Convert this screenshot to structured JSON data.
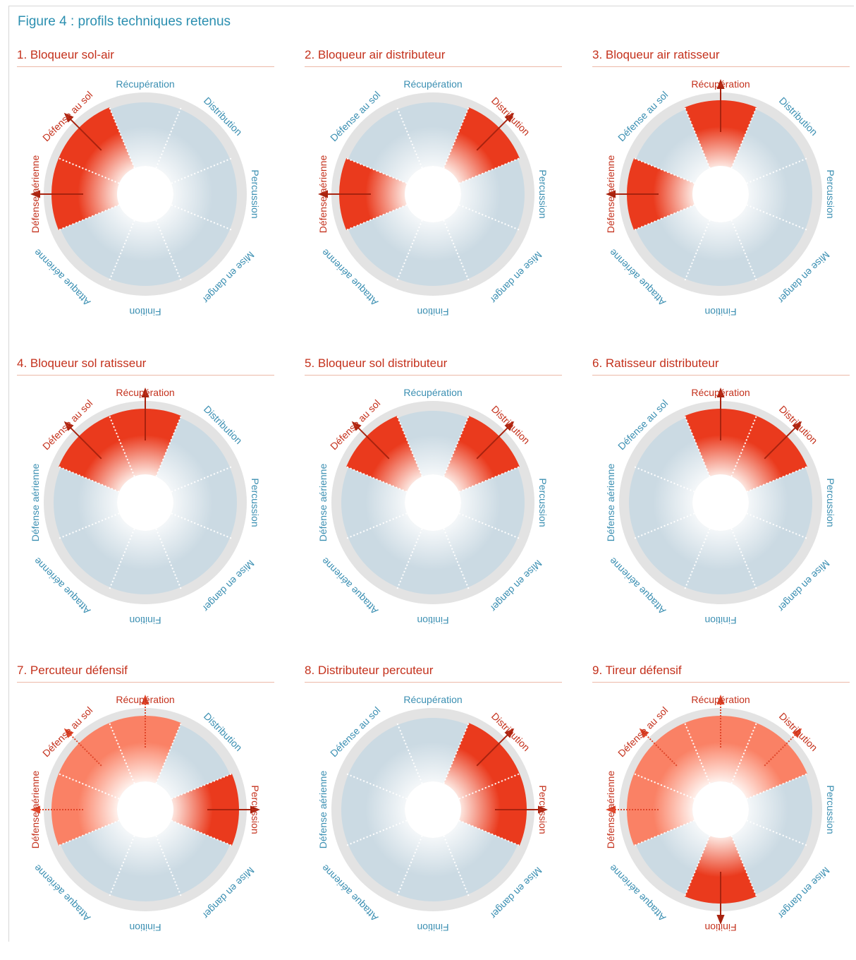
{
  "figure_title": "Figure 4 : profils techniques retenus",
  "chart_data": [
    {
      "type": "radial",
      "title": "1. Bloqueur sol-air",
      "categories": [
        "Récupération",
        "Distribution",
        "Percussion",
        "Mise en danger",
        "Finition",
        "Attaque aérienne",
        "Défense aérienne",
        "Défense au sol"
      ],
      "primary": [
        "Défense aérienne",
        "Défense au sol"
      ],
      "secondary": []
    },
    {
      "type": "radial",
      "title": "2. Bloqueur air distributeur",
      "categories": [
        "Récupération",
        "Distribution",
        "Percussion",
        "Mise en danger",
        "Finition",
        "Attaque aérienne",
        "Défense aérienne",
        "Défense au sol"
      ],
      "primary": [
        "Distribution",
        "Défense aérienne"
      ],
      "secondary": []
    },
    {
      "type": "radial",
      "title": "3. Bloqueur air ratisseur",
      "categories": [
        "Récupération",
        "Distribution",
        "Percussion",
        "Mise en danger",
        "Finition",
        "Attaque aérienne",
        "Défense aérienne",
        "Défense au sol"
      ],
      "primary": [
        "Récupération",
        "Défense aérienne"
      ],
      "secondary": []
    },
    {
      "type": "radial",
      "title": "4. Bloqueur sol ratisseur",
      "categories": [
        "Récupération",
        "Distribution",
        "Percussion",
        "Mise en danger",
        "Finition",
        "Attaque aérienne",
        "Défense aérienne",
        "Défense au sol"
      ],
      "primary": [
        "Récupération",
        "Défense au sol"
      ],
      "secondary": []
    },
    {
      "type": "radial",
      "title": "5. Bloqueur sol distributeur",
      "categories": [
        "Récupération",
        "Distribution",
        "Percussion",
        "Mise en danger",
        "Finition",
        "Attaque aérienne",
        "Défense aérienne",
        "Défense au sol"
      ],
      "primary": [
        "Distribution",
        "Défense au sol"
      ],
      "secondary": []
    },
    {
      "type": "radial",
      "title": "6. Ratisseur distributeur",
      "categories": [
        "Récupération",
        "Distribution",
        "Percussion",
        "Mise en danger",
        "Finition",
        "Attaque aérienne",
        "Défense aérienne",
        "Défense au sol"
      ],
      "primary": [
        "Récupération",
        "Distribution"
      ],
      "secondary": []
    },
    {
      "type": "radial",
      "title": "7. Percuteur défensif",
      "categories": [
        "Récupération",
        "Distribution",
        "Percussion",
        "Mise en danger",
        "Finition",
        "Attaque aérienne",
        "Défense aérienne",
        "Défense au sol"
      ],
      "primary": [
        "Percussion"
      ],
      "secondary": [
        "Récupération",
        "Défense aérienne",
        "Défense au sol"
      ]
    },
    {
      "type": "radial",
      "title": "8. Distributeur percuteur",
      "categories": [
        "Récupération",
        "Distribution",
        "Percussion",
        "Mise en danger",
        "Finition",
        "Attaque aérienne",
        "Défense aérienne",
        "Défense au sol"
      ],
      "primary": [
        "Distribution",
        "Percussion"
      ],
      "secondary": []
    },
    {
      "type": "radial",
      "title": "9. Tireur défensif",
      "categories": [
        "Récupération",
        "Distribution",
        "Percussion",
        "Mise en danger",
        "Finition",
        "Attaque aérienne",
        "Défense aérienne",
        "Défense au sol"
      ],
      "primary": [
        "Finition"
      ],
      "secondary": [
        "Récupération",
        "Distribution",
        "Défense aérienne",
        "Défense au sol"
      ]
    }
  ],
  "colors": {
    "primary": "#ea3a1d",
    "secondary": "#fa8165",
    "neutral": "#cbdae3",
    "ring": "#e3e3e3",
    "label_default": "#3b8fb2",
    "label_active": "#c4311c",
    "title": "#2b8fb0"
  }
}
